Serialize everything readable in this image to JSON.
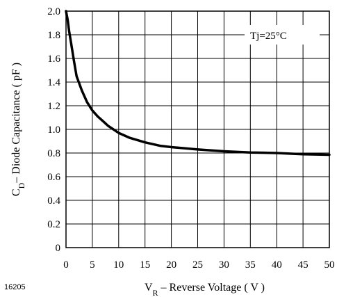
{
  "chart_data": {
    "type": "line",
    "title": "",
    "figure_number": "16205",
    "annotation": "Tj=25°C",
    "xlabel": {
      "main": "V",
      "sub": "R",
      "rest": " – Reverse Voltage ( V )"
    },
    "ylabel": {
      "main": "C",
      "sub": "D",
      "rest": "– Diode Capacitance ( pF )"
    },
    "xlim": [
      0,
      50
    ],
    "ylim": [
      0,
      2.0
    ],
    "x_ticks": [
      "0",
      "5",
      "10",
      "15",
      "20",
      "25",
      "30",
      "35",
      "40",
      "45",
      "50"
    ],
    "y_ticks": [
      "0",
      "0.2",
      "0.4",
      "0.6",
      "0.8",
      "1.0",
      "1.2",
      "1.4",
      "1.6",
      "1.8",
      "2.0"
    ],
    "grid": true,
    "series": [
      {
        "color": "#000000",
        "x": [
          0,
          0.3,
          0.6,
          1,
          1.5,
          2,
          3,
          4,
          5,
          6,
          7,
          8,
          9,
          10,
          12,
          15,
          18,
          20,
          25,
          30,
          35,
          40,
          45,
          50
        ],
        "y": [
          2.0,
          1.93,
          1.83,
          1.72,
          1.58,
          1.45,
          1.33,
          1.23,
          1.16,
          1.11,
          1.07,
          1.03,
          1.0,
          0.97,
          0.93,
          0.89,
          0.86,
          0.85,
          0.83,
          0.815,
          0.805,
          0.8,
          0.79,
          0.785
        ]
      }
    ]
  }
}
